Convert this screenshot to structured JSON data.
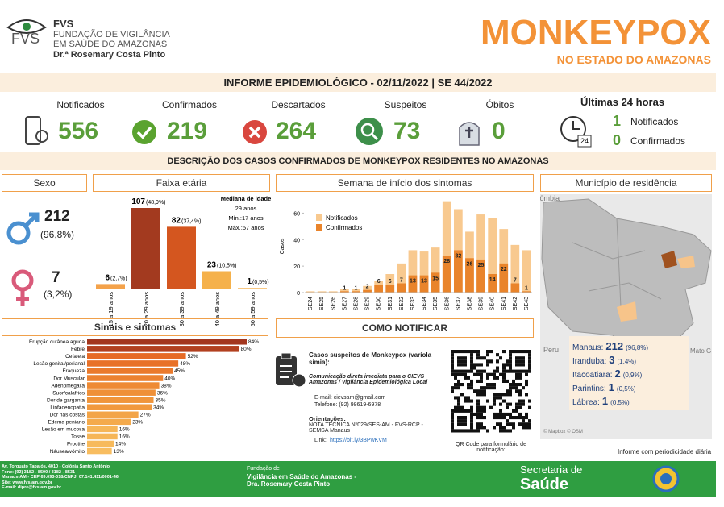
{
  "header": {
    "org": "FVS",
    "line1": "FUNDAÇÃO DE VIGILÂNCIA",
    "line2": "EM SAÚDE DO AMAZONAS",
    "line3": "Dr.ª Rosemary Costa Pinto",
    "title": "MONKEYPOX",
    "subtitle": "NO ESTADO DO AMAZONAS"
  },
  "report": "INFORME EPIDEMIOLÓGICO - 02/11/2022 | SE 44/2022",
  "kpis": [
    {
      "label": "Notificados",
      "value": 556
    },
    {
      "label": "Confirmados",
      "value": 219
    },
    {
      "label": "Descartados",
      "value": 264
    },
    {
      "label": "Suspeitos",
      "value": 73
    },
    {
      "label": "Óbitos",
      "value": 0
    }
  ],
  "last24": {
    "title": "Últimas 24 horas",
    "items": [
      {
        "value": 1,
        "label": "Notificados"
      },
      {
        "value": 0,
        "label": "Confirmados"
      }
    ]
  },
  "section_title": "DESCRIÇÃO DOS CASOS CONFIRMADOS DE MONKEYPOX RESIDENTES NO AMAZONAS",
  "panels": {
    "sexo": "Sexo",
    "municipio": "Município de residência",
    "notificar": "COMO NOTIFICAR"
  },
  "sexo": [
    {
      "value": 212,
      "percent": "(96,8%)"
    },
    {
      "value": 7,
      "percent": "(3,2%)"
    }
  ],
  "chart_data": [
    {
      "type": "bar",
      "title": "Faixa etária",
      "categories": [
        "15 a 19 anos",
        "20 a 29 anos",
        "30 a 39 anos",
        "40 a 49 anos",
        "50 a 59 anos"
      ],
      "values": [
        6,
        107,
        82,
        23,
        1
      ],
      "percent_labels": [
        "(2,7%)",
        "(48,9%)",
        "(37,4%)",
        "(10,5%)",
        "(0,5%)"
      ],
      "colors": [
        "#f4a24a",
        "#a33a1f",
        "#d4561f",
        "#f5b14b",
        "#f7c47a"
      ],
      "annotation": [
        "Mediana de idade",
        "29 anos",
        "Mín.:17 anos",
        "Máx.:57 anos"
      ]
    },
    {
      "type": "bar",
      "title": "Semana de início dos sintomas",
      "ylabel": "Casos",
      "categories": [
        "SE24",
        "SE25",
        "SE26",
        "SE27",
        "SE28",
        "SE29",
        "SE30",
        "SE31",
        "SE32",
        "SE33",
        "SE34",
        "SE35",
        "SE36",
        "SE37",
        "SE38",
        "SE39",
        "SE40",
        "SE41",
        "SE42",
        "SE43"
      ],
      "series": [
        {
          "name": "Notificados",
          "color": "#f8c98f",
          "values": [
            1,
            1,
            1,
            3,
            3,
            5,
            9,
            14,
            22,
            32,
            31,
            34,
            69,
            63,
            46,
            59,
            56,
            48,
            36,
            32
          ]
        },
        {
          "name": "Confirmados",
          "color": "#e9842b",
          "values": [
            null,
            null,
            null,
            1,
            1,
            2,
            6,
            6,
            7,
            13,
            13,
            15,
            28,
            32,
            26,
            25,
            14,
            22,
            7,
            1
          ]
        }
      ],
      "ylim": [
        0,
        70
      ],
      "yticks": [
        0,
        20,
        40,
        60
      ],
      "grid": false,
      "legend": "top-left"
    },
    {
      "type": "barh",
      "title": "Sinais e sintomas",
      "categories": [
        "Erupção cutânea aguda",
        "Febre",
        "Cefaleia",
        "Lesão genital/perianal",
        "Fraqueza",
        "Dor Muscular",
        "Adenomegalia",
        "Suor/calafrios",
        "Dor de garganta",
        "Linfadenopatia",
        "Dor nas costas",
        "Edema peniano",
        "Lesão em mucosa",
        "Tosse",
        "Proctite",
        "Náusea/vômito"
      ],
      "values": [
        84,
        80,
        52,
        48,
        45,
        40,
        38,
        36,
        35,
        34,
        27,
        23,
        16,
        16,
        14,
        13
      ],
      "value_labels": [
        "84%",
        "80%",
        "52%",
        "48%",
        "45%",
        "40%",
        "38%",
        "36%",
        "35%",
        "34%",
        "27%",
        "23%",
        "16%",
        "16%",
        "14%",
        "13%"
      ],
      "colors": [
        "#a3361e",
        "#b2401f",
        "#e66a25",
        "#e87128",
        "#ea7a2c",
        "#ec8230",
        "#ee8a34",
        "#ef9038",
        "#f0953b",
        "#f1993e",
        "#f3a447",
        "#f4aa4c",
        "#f6b658",
        "#f6b658",
        "#f7ba5c",
        "#f8bd60"
      ]
    }
  ],
  "municipios": [
    {
      "name": "Manaus:",
      "value": 212,
      "percent": "(96,8%)"
    },
    {
      "name": "Iranduba:",
      "value": 3,
      "percent": "(1,4%)"
    },
    {
      "name": "Itacoatiara:",
      "value": 2,
      "percent": "(0,9%)"
    },
    {
      "name": "Parintins:",
      "value": 1,
      "percent": "(0,5%)"
    },
    {
      "name": "Lábrea:",
      "value": 1,
      "percent": "(0,5%)"
    }
  ],
  "map_labels": [
    "Colômbia",
    "Peru",
    "Mato G",
    "© Mapbox © OSM"
  ],
  "note": "Informe com periodicidade diária",
  "notify": {
    "heading": "Casos suspeitos de Monkeypox (varíola símia):",
    "instruction": "Comunicação direta imediata para o CIEVS Amazonas / Vigilância Epidemiológica Local",
    "email": "E-mail: cievsam@gmail.com",
    "phone": "Telefone: (92) 98619-6978",
    "orient": "Orientações:",
    "nota": "NOTA TÉCNICA Nº029/SES-AM - FVS-RCP - SEMSA Manaus",
    "link_label": "Link:",
    "link": "https://bit.ly/3BPwKVM",
    "qr": "QR Code para formulário de notificação:"
  },
  "footer": {
    "address": [
      "Av. Torquato Tapajós, 4010 - Colônia Santo Antônio",
      "Fone: (92) 3182 - 8500 / 3182 - 8531",
      "Manaus-AM - CEP 69.093-018/CNPJ: 07.141.411/0001-46",
      "Site: www.fvs.am.gov.br",
      "E-mail: dipre@fvs.am.gov.br"
    ],
    "fvs": [
      "Fundação de",
      "Vigilância em Saúde do Amazonas -",
      "Dra. Rosemary Costa Pinto"
    ],
    "sec": [
      "Secretaria de",
      "Saúde"
    ]
  }
}
